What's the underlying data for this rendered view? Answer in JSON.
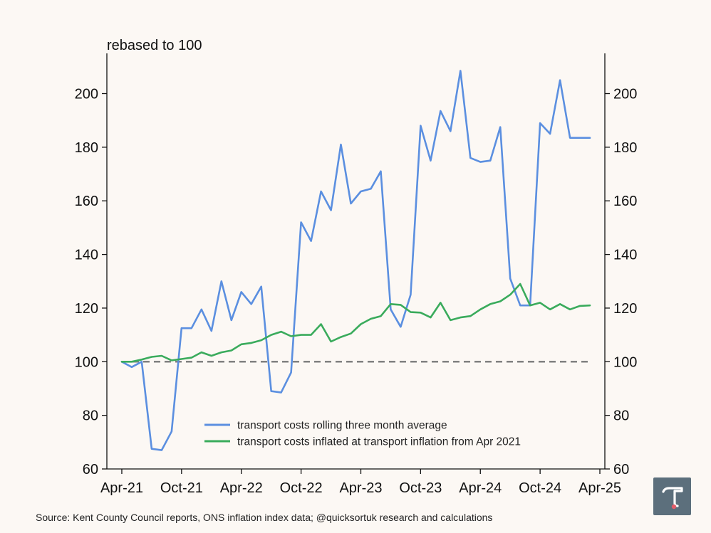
{
  "chart_data": {
    "type": "line",
    "ylabel": "rebased to 100",
    "ylim": [
      60,
      215
    ],
    "yticks": [
      60,
      80,
      100,
      120,
      140,
      160,
      180,
      200
    ],
    "xlim": [
      -1.5,
      48.5
    ],
    "xticks": [
      {
        "pos": 0,
        "label": "Apr-21"
      },
      {
        "pos": 6,
        "label": "Oct-21"
      },
      {
        "pos": 12,
        "label": "Apr-22"
      },
      {
        "pos": 18,
        "label": "Oct-22"
      },
      {
        "pos": 24,
        "label": "Apr-23"
      },
      {
        "pos": 30,
        "label": "Oct-23"
      },
      {
        "pos": 36,
        "label": "Apr-24"
      },
      {
        "pos": 42,
        "label": "Oct-24"
      },
      {
        "pos": 48,
        "label": "Apr-25"
      }
    ],
    "baseline": {
      "value": 100,
      "style": "dashed",
      "color": "#808080"
    },
    "series": [
      {
        "name": "transport costs rolling three month average",
        "color": "#5b8fe0",
        "values": [
          100,
          98,
          100,
          67.5,
          67,
          74,
          112.5,
          112.5,
          119.5,
          111.5,
          130,
          115.5,
          126,
          121.5,
          128,
          89,
          88.5,
          96,
          152,
          145,
          163.5,
          156.5,
          181,
          159,
          163.5,
          164.5,
          171,
          119.5,
          113,
          125,
          188,
          175,
          193.5,
          186,
          208.5,
          176,
          174.5,
          175,
          187.5,
          131,
          121,
          121,
          189,
          185,
          205,
          183.5,
          183.5,
          183.5
        ]
      },
      {
        "name": "transport costs inflated at transport inflation from Apr 2021",
        "color": "#3aab5c",
        "values": [
          100,
          100,
          100.8,
          101.8,
          102.2,
          100.5,
          101,
          101.5,
          103.5,
          102.2,
          103.5,
          104.2,
          106.5,
          107,
          108,
          110,
          111.2,
          109.5,
          110,
          110,
          114,
          107.5,
          109.2,
          110.5,
          114,
          116,
          117,
          121.5,
          121.2,
          118.5,
          118.3,
          116.5,
          122,
          115.5,
          116.5,
          117,
          119.5,
          121.5,
          122.5,
          125,
          129,
          121,
          122,
          119.5,
          121.5,
          119.5,
          120.8,
          121
        ]
      }
    ],
    "legend": {
      "placement": "lower-center"
    }
  },
  "source_text": "Source: Kent County Council reports, ONS inflation index data; @quicksortuk research and calculations",
  "logo_icon": "tau-icon"
}
